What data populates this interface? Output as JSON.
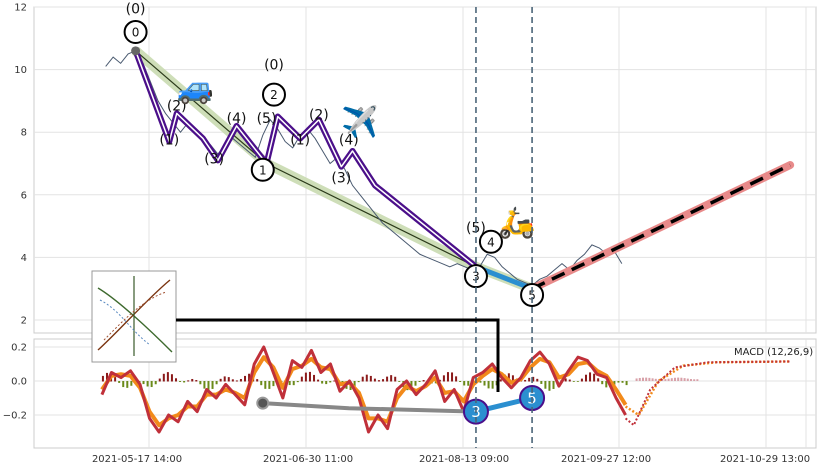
{
  "chart_data": [
    {
      "type": "line",
      "title": "",
      "xlabel": "",
      "ylabel": "",
      "ylim": [
        1.5,
        12.3
      ],
      "yticks": [
        2,
        4,
        6,
        8,
        10,
        12
      ],
      "grid": true,
      "price_series": {
        "name": "",
        "color": "#4a5a70",
        "points": [
          [
            "2021-05-06",
            10.1
          ],
          [
            "2021-05-08",
            10.4
          ],
          [
            "2021-05-10",
            10.2
          ],
          [
            "2021-05-12",
            10.5
          ],
          [
            "2021-05-14",
            10.6
          ],
          [
            "2021-05-16",
            10.2
          ],
          [
            "2021-05-18",
            9.6
          ],
          [
            "2021-05-20",
            9.0
          ],
          [
            "2021-05-22",
            8.6
          ],
          [
            "2021-05-24",
            8.3
          ],
          [
            "2021-05-26",
            8.0
          ],
          [
            "2021-05-28",
            8.3
          ],
          [
            "2021-05-30",
            8.0
          ],
          [
            "2021-06-01",
            7.8
          ],
          [
            "2021-06-03",
            7.6
          ],
          [
            "2021-06-05",
            7.3
          ],
          [
            "2021-06-07",
            7.6
          ],
          [
            "2021-06-09",
            7.8
          ],
          [
            "2021-06-11",
            7.6
          ],
          [
            "2021-06-13",
            7.4
          ],
          [
            "2021-06-15",
            7.2
          ],
          [
            "2021-06-17",
            7.9
          ],
          [
            "2021-06-19",
            8.4
          ],
          [
            "2021-06-21",
            8.1
          ],
          [
            "2021-06-23",
            7.7
          ],
          [
            "2021-06-25",
            7.5
          ],
          [
            "2021-06-27",
            7.9
          ],
          [
            "2021-06-29",
            8.1
          ],
          [
            "2021-07-01",
            7.8
          ],
          [
            "2021-07-03",
            7.4
          ],
          [
            "2021-07-05",
            7.0
          ],
          [
            "2021-07-07",
            7.2
          ],
          [
            "2021-07-09",
            6.8
          ],
          [
            "2021-07-11",
            6.3
          ],
          [
            "2021-07-13",
            6.0
          ],
          [
            "2021-07-15",
            5.7
          ],
          [
            "2021-07-17",
            5.4
          ],
          [
            "2021-07-19",
            5.1
          ],
          [
            "2021-07-21",
            4.9
          ],
          [
            "2021-07-23",
            4.7
          ],
          [
            "2021-07-25",
            4.5
          ],
          [
            "2021-07-27",
            4.3
          ],
          [
            "2021-07-29",
            4.1
          ],
          [
            "2021-07-31",
            4.0
          ],
          [
            "2021-08-02",
            3.9
          ],
          [
            "2021-08-04",
            3.8
          ],
          [
            "2021-08-06",
            3.7
          ],
          [
            "2021-08-08",
            3.8
          ],
          [
            "2021-08-10",
            3.7
          ],
          [
            "2021-08-12",
            3.6
          ],
          [
            "2021-08-14",
            3.7
          ],
          [
            "2021-08-16",
            4.1
          ],
          [
            "2021-08-18",
            4.0
          ],
          [
            "2021-08-20",
            3.7
          ],
          [
            "2021-08-22",
            3.5
          ],
          [
            "2021-08-24",
            3.3
          ],
          [
            "2021-08-26",
            3.2
          ],
          [
            "2021-08-28",
            3.1
          ],
          [
            "2021-08-30",
            3.3
          ],
          [
            "2021-09-01",
            3.4
          ],
          [
            "2021-09-03",
            3.6
          ],
          [
            "2021-09-05",
            3.8
          ],
          [
            "2021-09-07",
            3.6
          ],
          [
            "2021-09-09",
            3.9
          ],
          [
            "2021-09-11",
            4.1
          ],
          [
            "2021-09-13",
            4.4
          ],
          [
            "2021-09-15",
            4.3
          ],
          [
            "2021-09-17",
            4.1
          ],
          [
            "2021-09-19",
            4.2
          ],
          [
            "2021-09-21",
            3.8
          ]
        ]
      },
      "wave_zigzag": {
        "color": "#4b0f8a",
        "points": [
          [
            "2021-05-14",
            10.6
          ],
          [
            "2021-05-23",
            7.7
          ],
          [
            "2021-05-25",
            8.6
          ],
          [
            "2021-06-01",
            7.8
          ],
          [
            "2021-06-05",
            7.1
          ],
          [
            "2021-06-10",
            8.2
          ],
          [
            "2021-06-18",
            7.0
          ],
          [
            "2021-06-21",
            8.5
          ],
          [
            "2021-06-27",
            7.8
          ],
          [
            "2021-07-02",
            8.4
          ],
          [
            "2021-07-08",
            6.9
          ],
          [
            "2021-07-11",
            7.4
          ],
          [
            "2021-07-17",
            6.3
          ],
          [
            "2021-08-13",
            3.7
          ]
        ]
      },
      "trend_channel": {
        "points": [
          [
            "2021-05-14",
            10.6
          ],
          [
            "2021-06-18",
            7.0
          ],
          [
            "2021-08-13",
            3.7
          ],
          [
            "2021-08-28",
            3.0
          ]
        ]
      },
      "blue_leg": {
        "color": "#2b8fd0",
        "points": [
          [
            "2021-08-13",
            3.7
          ],
          [
            "2021-08-28",
            3.0
          ]
        ]
      },
      "forecast": {
        "color": "#e88a8a",
        "points": [
          [
            "2021-08-28",
            3.0
          ],
          [
            "2021-11-05",
            6.95
          ]
        ]
      },
      "vlines": [
        "2021-08-13",
        "2021-08-28"
      ],
      "wave_circles": [
        {
          "label": "0",
          "x": "2021-05-14",
          "y": 11.2
        },
        {
          "label": "2",
          "x": "2021-06-20",
          "y": 9.2
        },
        {
          "label": "1",
          "x": "2021-06-17",
          "y": 6.8
        },
        {
          "label": "4",
          "x": "2021-08-17",
          "y": 4.5
        },
        {
          "label": "3",
          "x": "2021-08-13",
          "y": 3.4
        },
        {
          "label": "5",
          "x": "2021-08-28",
          "y": 2.8
        }
      ],
      "wave_labels": [
        {
          "text": "(0)",
          "x": "2021-05-14",
          "y": 11.8
        },
        {
          "text": "(0)",
          "x": "2021-06-20",
          "y": 10.0
        },
        {
          "text": "(2)",
          "x": "2021-05-25",
          "y": 8.7
        },
        {
          "text": "(1)",
          "x": "2021-05-23",
          "y": 7.6
        },
        {
          "text": "(3)",
          "x": "2021-06-04",
          "y": 7.0
        },
        {
          "text": "(4)",
          "x": "2021-06-10",
          "y": 8.3
        },
        {
          "text": "(5)",
          "x": "2021-06-18",
          "y": 8.3
        },
        {
          "text": "(1)",
          "x": "2021-06-27",
          "y": 7.6
        },
        {
          "text": "(2)",
          "x": "2021-07-02",
          "y": 8.4
        },
        {
          "text": "(3)",
          "x": "2021-07-08",
          "y": 6.4
        },
        {
          "text": "(4)",
          "x": "2021-07-10",
          "y": 7.6
        },
        {
          "text": "(5)",
          "x": "2021-08-13",
          "y": 4.8
        }
      ],
      "emojis": [
        {
          "icon": "🚙",
          "x": "2021-05-30",
          "y": 9.1
        },
        {
          "icon": "✈️",
          "x": "2021-07-13",
          "y": 8.0
        },
        {
          "icon": "🛵",
          "x": "2021-08-24",
          "y": 4.8
        }
      ]
    },
    {
      "type": "line",
      "title": "",
      "xlabel": "",
      "ylabel": "",
      "ylim": [
        -0.39,
        0.25
      ],
      "yticks": [
        0.2,
        0.0,
        -0.2
      ],
      "ytick_labels": [
        "0.2",
        "0.0",
        "−0.2"
      ],
      "grid": true,
      "legend": {
        "position": "top-right",
        "label": "MACD (12,26,9)"
      },
      "macd_points": [
        -0.08,
        0.05,
        0.02,
        0.06,
        -0.02,
        -0.22,
        -0.3,
        -0.2,
        -0.24,
        -0.12,
        -0.18,
        -0.05,
        -0.1,
        -0.02,
        -0.08,
        -0.14,
        0.1,
        0.2,
        0.05,
        -0.1,
        0.12,
        0.08,
        0.18,
        0.05,
        0.1,
        -0.06,
        0.0,
        -0.1,
        -0.3,
        -0.2,
        -0.28,
        -0.05,
        0.0,
        -0.08,
        -0.02,
        0.06,
        -0.12,
        -0.05,
        -0.18,
        0.02,
        0.05,
        0.1,
        0.02,
        -0.04,
        0.02,
        0.12,
        0.17,
        0.1,
        -0.03,
        0.06,
        0.14,
        0.12,
        0.04,
        0.02,
        -0.1,
        -0.2
      ],
      "signal_points": [
        -0.05,
        0.03,
        0.04,
        0.03,
        -0.04,
        -0.18,
        -0.26,
        -0.22,
        -0.2,
        -0.15,
        -0.15,
        -0.08,
        -0.08,
        -0.05,
        -0.07,
        -0.1,
        0.05,
        0.14,
        0.08,
        -0.04,
        0.07,
        0.09,
        0.13,
        0.08,
        0.07,
        -0.02,
        -0.01,
        -0.07,
        -0.22,
        -0.22,
        -0.24,
        -0.1,
        -0.03,
        -0.06,
        -0.03,
        0.02,
        -0.07,
        -0.06,
        -0.12,
        -0.02,
        0.03,
        0.07,
        0.04,
        -0.01,
        0.01,
        0.08,
        0.13,
        0.11,
        0.02,
        0.04,
        0.1,
        0.11,
        0.06,
        0.03,
        -0.05,
        -0.14
      ],
      "forecast_macd": [
        [
          0,
          -0.22
        ],
        [
          0.05,
          -0.26
        ],
        [
          0.15,
          -0.05
        ],
        [
          0.3,
          0.08
        ],
        [
          0.5,
          0.11
        ],
        [
          1.0,
          0.115
        ]
      ],
      "forecast_signal": [
        [
          0,
          -0.15
        ],
        [
          0.08,
          -0.2
        ],
        [
          0.2,
          0.0
        ],
        [
          0.35,
          0.09
        ],
        [
          0.55,
          0.11
        ],
        [
          1.0,
          0.115
        ]
      ],
      "gray_path": [
        [
          "2021-06-17",
          -0.13
        ],
        [
          "2021-07-10",
          -0.16
        ],
        [
          "2021-08-13",
          -0.18
        ]
      ],
      "blue_path": [
        [
          "2021-08-13",
          -0.18
        ],
        [
          "2021-08-28",
          -0.1
        ]
      ],
      "macd_circles": [
        {
          "label": "3",
          "x": "2021-08-13",
          "y": -0.18
        },
        {
          "label": "5",
          "x": "2021-08-28",
          "y": -0.1
        }
      ],
      "x_tick_labels": [
        "2021-05-17 14:00",
        "2021-06-30 11:00",
        "2021-08-13 09:00",
        "2021-09-27 12:00",
        "2021-10-29 13:00"
      ]
    }
  ]
}
